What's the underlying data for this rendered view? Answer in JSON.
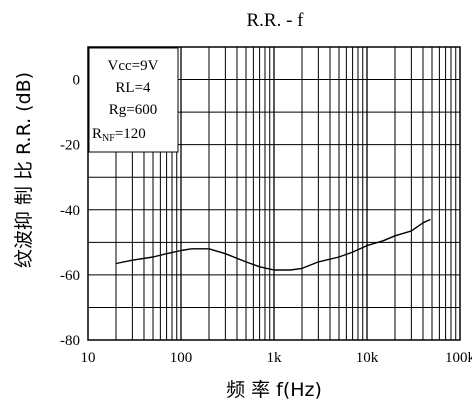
{
  "chart_data": {
    "type": "line",
    "title": "R.R. - f",
    "xlabel": "频 率 f(Hz)",
    "ylabel": "纹波抑 制 比 R.R. (dB)",
    "x_scale": "log",
    "xlim": [
      10,
      100000
    ],
    "ylim": [
      -80,
      10
    ],
    "x_ticks": [
      "10",
      "100",
      "1k",
      "10k",
      "100k"
    ],
    "x_tick_values": [
      10,
      100,
      1000,
      10000,
      100000
    ],
    "y_ticks": [
      "0",
      "-20",
      "-40",
      "-60",
      "-80"
    ],
    "y_tick_values": [
      0,
      -20,
      -40,
      -60,
      -80
    ],
    "grid": true,
    "annotations": {
      "vcc": "Vcc=9V",
      "rl": "RL=4",
      "rg": "Rg=600",
      "rnf_prefix": "R",
      "rnf_sub": "NF",
      "rnf_value": "=120"
    },
    "series": [
      {
        "x": [
          20,
          30,
          50,
          70,
          100,
          130,
          200,
          300,
          500,
          700,
          1000,
          1500,
          2000,
          3000,
          5000,
          7000,
          10000,
          15000,
          20000,
          30000,
          40000,
          48000
        ],
        "y": [
          -56.5,
          -55.5,
          -54.5,
          -53.5,
          -52.5,
          -52,
          -52,
          -53.5,
          -56,
          -57.5,
          -58.5,
          -58.5,
          -58,
          -56,
          -54.5,
          -53,
          -51,
          -49.5,
          -48,
          -46.5,
          -44,
          -43
        ]
      }
    ],
    "line_color": "#000000"
  }
}
